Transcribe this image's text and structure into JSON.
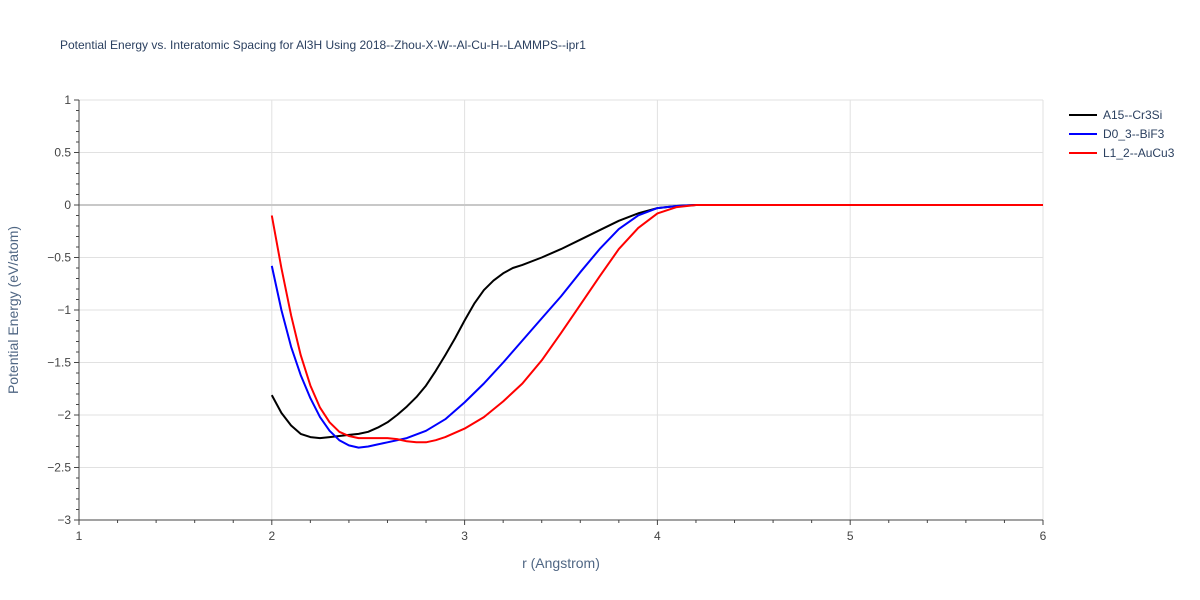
{
  "title": "Potential Energy vs. Interatomic Spacing for Al3H Using 2018--Zhou-X-W--Al-Cu-H--LAMMPS--ipr1",
  "chart_data": {
    "type": "line",
    "title": "Potential Energy vs. Interatomic Spacing for Al3H Using 2018--Zhou-X-W--Al-Cu-H--LAMMPS--ipr1",
    "xlabel": "r (Angstrom)",
    "ylabel": "Potential Energy (eV/atom)",
    "xlim": [
      1,
      6
    ],
    "ylim": [
      -3,
      1
    ],
    "xticks": [
      1,
      2,
      3,
      4,
      5,
      6
    ],
    "xtick_labels": [
      "1",
      "2",
      "3",
      "4",
      "5",
      "6"
    ],
    "yticks": [
      1,
      0.5,
      0,
      -0.5,
      -1,
      -1.5,
      -2,
      -2.5,
      -3
    ],
    "ytick_labels": [
      "1",
      "0.5",
      "0",
      "−0.5",
      "−1",
      "−1.5",
      "−2",
      "−2.5",
      "−3"
    ],
    "grid": true,
    "legend_position": "top-right",
    "series": [
      {
        "name": "A15--Cr3Si",
        "color": "#000000",
        "x": [
          2.0,
          2.05,
          2.1,
          2.15,
          2.2,
          2.25,
          2.3,
          2.35,
          2.4,
          2.45,
          2.5,
          2.55,
          2.6,
          2.65,
          2.7,
          2.75,
          2.8,
          2.85,
          2.9,
          2.95,
          3.0,
          3.05,
          3.1,
          3.15,
          3.2,
          3.25,
          3.3,
          3.4,
          3.5,
          3.6,
          3.7,
          3.8,
          3.9,
          4.0,
          4.1,
          4.2,
          4.5,
          5.0,
          5.5,
          6.0
        ],
        "y": [
          -1.81,
          -1.98,
          -2.1,
          -2.18,
          -2.21,
          -2.22,
          -2.21,
          -2.2,
          -2.19,
          -2.18,
          -2.16,
          -2.12,
          -2.07,
          -2.0,
          -1.92,
          -1.83,
          -1.72,
          -1.58,
          -1.43,
          -1.27,
          -1.1,
          -0.94,
          -0.81,
          -0.72,
          -0.65,
          -0.6,
          -0.57,
          -0.5,
          -0.42,
          -0.33,
          -0.24,
          -0.15,
          -0.08,
          -0.03,
          -0.01,
          0.0,
          0.0,
          0.0,
          0.0,
          0.0
        ]
      },
      {
        "name": "D0_3--BiF3",
        "color": "#0000ff",
        "x": [
          2.0,
          2.05,
          2.1,
          2.15,
          2.2,
          2.25,
          2.3,
          2.35,
          2.4,
          2.45,
          2.5,
          2.55,
          2.6,
          2.7,
          2.8,
          2.9,
          3.0,
          3.1,
          3.2,
          3.3,
          3.4,
          3.5,
          3.6,
          3.7,
          3.8,
          3.9,
          4.0,
          4.1,
          4.2,
          4.5,
          5.0,
          5.5,
          6.0
        ],
        "y": [
          -0.58,
          -1.0,
          -1.35,
          -1.62,
          -1.84,
          -2.02,
          -2.15,
          -2.24,
          -2.29,
          -2.31,
          -2.3,
          -2.28,
          -2.26,
          -2.22,
          -2.15,
          -2.04,
          -1.88,
          -1.7,
          -1.5,
          -1.29,
          -1.08,
          -0.87,
          -0.64,
          -0.42,
          -0.23,
          -0.1,
          -0.03,
          -0.01,
          0.0,
          0.0,
          0.0,
          0.0,
          0.0
        ]
      },
      {
        "name": "L1_2--AuCu3",
        "color": "#ff0000",
        "x": [
          2.0,
          2.05,
          2.1,
          2.15,
          2.2,
          2.25,
          2.3,
          2.35,
          2.4,
          2.45,
          2.5,
          2.55,
          2.6,
          2.65,
          2.7,
          2.75,
          2.8,
          2.85,
          2.9,
          3.0,
          3.1,
          3.2,
          3.3,
          3.4,
          3.5,
          3.6,
          3.7,
          3.8,
          3.9,
          4.0,
          4.1,
          4.2,
          4.5,
          5.0,
          5.5,
          6.0
        ],
        "y": [
          -0.1,
          -0.6,
          -1.05,
          -1.43,
          -1.72,
          -1.93,
          -2.07,
          -2.16,
          -2.2,
          -2.22,
          -2.22,
          -2.22,
          -2.22,
          -2.23,
          -2.25,
          -2.26,
          -2.26,
          -2.24,
          -2.21,
          -2.13,
          -2.02,
          -1.87,
          -1.7,
          -1.48,
          -1.22,
          -0.95,
          -0.68,
          -0.42,
          -0.22,
          -0.08,
          -0.02,
          0.0,
          0.0,
          0.0,
          0.0,
          0.0
        ]
      }
    ]
  }
}
